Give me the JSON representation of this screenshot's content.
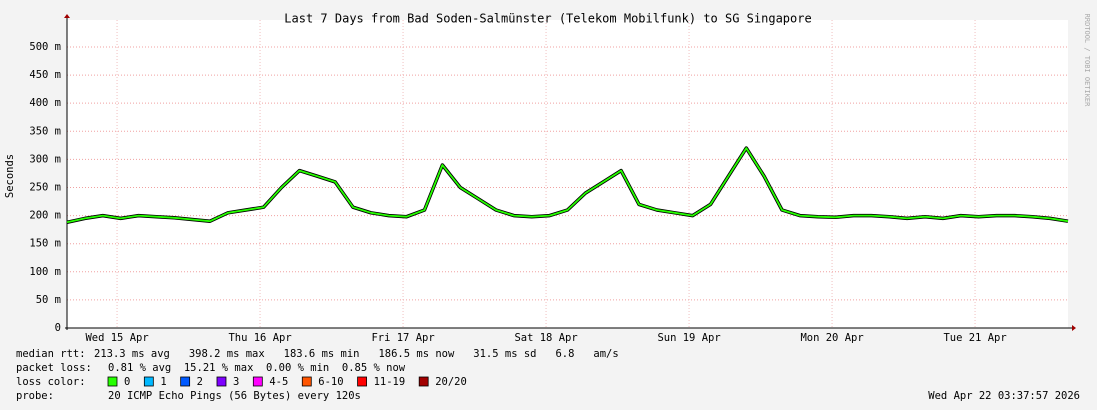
{
  "chart_data": {
    "type": "line",
    "title": "Last 7 Days from Bad Soden-Salmünster (Telekom Mobilfunk) to SG Singapore",
    "y_label": "Seconds",
    "watermark": "RRDTOOL / TOBI OETIKER",
    "x": [
      0,
      3,
      6,
      9,
      12,
      15,
      18,
      21,
      24,
      27,
      30,
      33,
      36,
      39,
      42,
      45,
      48,
      51,
      54,
      57,
      60,
      63,
      66,
      69,
      72,
      75,
      78,
      81,
      84,
      87,
      90,
      93,
      96,
      99,
      102,
      105,
      108,
      111,
      114,
      117,
      120,
      123,
      126,
      129,
      132,
      135,
      138,
      141,
      144,
      147,
      150,
      153,
      156,
      159,
      162,
      165,
      168
    ],
    "series": [
      {
        "name": "median rtt:",
        "color": "#26ff00",
        "values": [
          0.188,
          0.195,
          0.2,
          0.195,
          0.2,
          0.198,
          0.196,
          0.193,
          0.19,
          0.205,
          0.21,
          0.215,
          0.25,
          0.28,
          0.27,
          0.26,
          0.215,
          0.205,
          0.2,
          0.198,
          0.21,
          0.29,
          0.25,
          0.23,
          0.21,
          0.2,
          0.198,
          0.2,
          0.21,
          0.24,
          0.26,
          0.28,
          0.22,
          0.21,
          0.205,
          0.2,
          0.22,
          0.27,
          0.32,
          0.27,
          0.21,
          0.2,
          0.198,
          0.197,
          0.2,
          0.2,
          0.198,
          0.195,
          0.198,
          0.195,
          0.2,
          0.198,
          0.2,
          0.2,
          0.198,
          0.195,
          0.19
        ]
      }
    ],
    "xlim": [
      0,
      168
    ],
    "xticks": [
      {
        "value": 8.4,
        "label": "Wed 15 Apr"
      },
      {
        "value": 32.4,
        "label": "Thu 16 Apr"
      },
      {
        "value": 56.4,
        "label": "Fri 17 Apr"
      },
      {
        "value": 80.4,
        "label": "Sat 18 Apr"
      },
      {
        "value": 104.4,
        "label": "Sun 19 Apr"
      },
      {
        "value": 128.4,
        "label": "Mon 20 Apr"
      },
      {
        "value": 152.4,
        "label": "Tue 21 Apr"
      }
    ],
    "ylim": [
      0,
      0.548
    ],
    "yticks": [
      0,
      {
        "value": 0.05,
        "label": "50 m"
      },
      {
        "value": 0.1,
        "label": "100 m"
      },
      {
        "value": 0.15,
        "label": "150 m"
      },
      {
        "value": 0.2,
        "label": "200 m"
      },
      {
        "value": 0.25,
        "label": "250 m"
      },
      {
        "value": 0.3,
        "label": "300 m"
      },
      {
        "value": 0.35,
        "label": "350 m"
      },
      {
        "value": 0.4,
        "label": "400 m"
      },
      {
        "value": 0.45,
        "label": "450 m"
      },
      {
        "value": 0.5,
        "label": "500 m"
      }
    ],
    "grid": true,
    "median_text": "213.3 ms avg   398.2 ms max   183.6 ms min   186.5 ms now   31.5 ms sd   6.8   am/s",
    "packet_loss": {
      "label": "packet loss:",
      "text": "0.81 % avg  15.21 % max  0.00 % min  0.85 % now"
    },
    "loss_legend_label": "loss color:",
    "loss_legend": [
      {
        "label": "0",
        "color": "#26ff00"
      },
      {
        "label": "1",
        "color": "#00b8ff"
      },
      {
        "label": "2",
        "color": "#0059ff"
      },
      {
        "label": "3",
        "color": "#7e00ff"
      },
      {
        "label": "4-5",
        "color": "#ff00ff"
      },
      {
        "label": "6-10",
        "color": "#ff5500"
      },
      {
        "label": "11-19",
        "color": "#ff0000"
      },
      {
        "label": "20/20",
        "color": "#a10000"
      }
    ],
    "probe": {
      "label": "probe:",
      "text": "20 ICMP Echo Pings (56 Bytes) every 120s"
    },
    "timestamp": "Wed Apr 22 03:37:57 2026"
  }
}
